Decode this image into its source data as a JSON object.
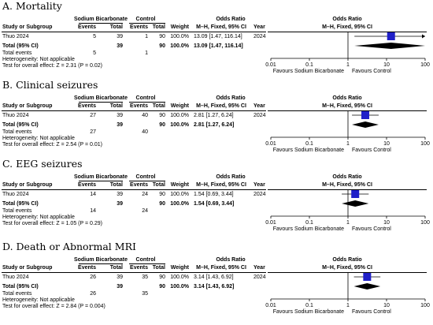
{
  "chart_data": [
    {
      "type": "forest",
      "title": "A. Mortality",
      "columns": {
        "study": "Study or Subgroup",
        "group1": "Sodium Bicarbonate",
        "group2": "Control",
        "events": "Events",
        "total": "Total",
        "weight": "Weight",
        "or_header": "Odds Ratio",
        "or_sub": "M–H, Fixed, 95% CI",
        "year": "Year"
      },
      "studies": [
        {
          "name": "Thuo 2024",
          "events1": "5",
          "total1": "39",
          "events2": "1",
          "total2": "90",
          "weight": "100.0%",
          "ci_text": "13.09 [1.47, 116.14]",
          "year": "2024",
          "or": 13.09,
          "lo": 1.47,
          "hi": 116.14,
          "arrow_right": true
        }
      ],
      "total": {
        "label": "Total (95% CI)",
        "total1": "39",
        "total2": "90",
        "weight": "100.0%",
        "ci_text": "13.09 [1.47, 116.14]",
        "or": 13.09,
        "lo": 1.47,
        "hi": 116.14
      },
      "total_events": {
        "label": "Total events",
        "events1": "5",
        "events2": "1"
      },
      "heterogeneity": "Heterogeneity: Not applicable",
      "overall_effect": "Test for overall effect: Z = 2.31 (P = 0.02)",
      "axis": {
        "scale": "log",
        "min": 0.01,
        "max": 100,
        "ticks": [
          "0.01",
          "0.1",
          "1",
          "10",
          "100"
        ],
        "left_label": "Favours Sodium Bicarbonate",
        "right_label": "Favours Control"
      }
    },
    {
      "type": "forest",
      "title": "B. Clinical seizures",
      "columns": {
        "study": "Study or Subgroup",
        "group1": "Sodium Bicarbonate",
        "group2": "Control",
        "events": "Events",
        "total": "Total",
        "weight": "Weight",
        "or_header": "Odds Ratio",
        "or_sub": "M–H, Fixed, 95% CI",
        "year": "Year"
      },
      "studies": [
        {
          "name": "Thuo 2024",
          "events1": "27",
          "total1": "39",
          "events2": "40",
          "total2": "90",
          "weight": "100.0%",
          "ci_text": "2.81 [1.27, 6.24]",
          "year": "2024",
          "or": 2.81,
          "lo": 1.27,
          "hi": 6.24,
          "arrow_right": false
        }
      ],
      "total": {
        "label": "Total (95% CI)",
        "total1": "39",
        "total2": "90",
        "weight": "100.0%",
        "ci_text": "2.81 [1.27, 6.24]",
        "or": 2.81,
        "lo": 1.27,
        "hi": 6.24
      },
      "total_events": {
        "label": "Total events",
        "events1": "27",
        "events2": "40"
      },
      "heterogeneity": "Heterogeneity: Not applicable",
      "overall_effect": "Test for overall effect: Z = 2.54 (P = 0.01)",
      "axis": {
        "scale": "log",
        "min": 0.01,
        "max": 100,
        "ticks": [
          "0.01",
          "0.1",
          "1",
          "10",
          "100"
        ],
        "left_label": "Favours Sodium Bicarbonate",
        "right_label": "Favours Control"
      }
    },
    {
      "type": "forest",
      "title": "C. EEG seizures",
      "columns": {
        "study": "Study or Subgroup",
        "group1": "Sodium Bicarbonate",
        "group2": "Control",
        "events": "Events",
        "total": "Total",
        "weight": "Weight",
        "or_header": "Odds Ratio",
        "or_sub": "M–H, Fixed, 95% CI",
        "year": "Year"
      },
      "studies": [
        {
          "name": "Thuo 2024",
          "events1": "14",
          "total1": "39",
          "events2": "24",
          "total2": "90",
          "weight": "100.0%",
          "ci_text": "1.54 [0.69, 3.44]",
          "year": "2024",
          "or": 1.54,
          "lo": 0.69,
          "hi": 3.44,
          "arrow_right": false
        }
      ],
      "total": {
        "label": "Total (95% CI)",
        "total1": "39",
        "total2": "90",
        "weight": "100.0%",
        "ci_text": "1.54 [0.69, 3.44]",
        "or": 1.54,
        "lo": 0.69,
        "hi": 3.44
      },
      "total_events": {
        "label": "Total events",
        "events1": "14",
        "events2": "24"
      },
      "heterogeneity": "Heterogeneity: Not applicable",
      "overall_effect": "Test for overall effect: Z = 1.05 (P = 0.29)",
      "axis": {
        "scale": "log",
        "min": 0.01,
        "max": 100,
        "ticks": [
          "0.01",
          "0.1",
          "1",
          "10",
          "100"
        ],
        "left_label": "Favours Sodium Bicarbonate",
        "right_label": "Favours Control"
      }
    },
    {
      "type": "forest",
      "title": "D. Death or Abnormal MRI",
      "columns": {
        "study": "Study or Subgroup",
        "group1": "Sodium Bicarbonate",
        "group2": "Control",
        "events": "Events",
        "total": "Total",
        "weight": "Weight",
        "or_header": "Odds Ratio",
        "or_sub": "M–H, Fixed, 95% CI",
        "year": "Year"
      },
      "studies": [
        {
          "name": "Thuo 2024",
          "events1": "26",
          "total1": "39",
          "events2": "35",
          "total2": "90",
          "weight": "100.0%",
          "ci_text": "3.14 [1.43, 6.92]",
          "year": "2024",
          "or": 3.14,
          "lo": 1.43,
          "hi": 6.92,
          "arrow_right": false
        }
      ],
      "total": {
        "label": "Total (95% CI)",
        "total1": "39",
        "total2": "90",
        "weight": "100.0%",
        "ci_text": "3.14 [1.43, 6.92]",
        "or": 3.14,
        "lo": 1.43,
        "hi": 6.92
      },
      "total_events": {
        "label": "Total events",
        "events1": "26",
        "events2": "35"
      },
      "heterogeneity": "Heterogeneity: Not applicable",
      "overall_effect": "Test for overall effect: Z = 2.84 (P = 0.004)",
      "axis": {
        "scale": "log",
        "min": 0.01,
        "max": 100,
        "ticks": [
          "0.01",
          "0.1",
          "1",
          "10",
          "100"
        ],
        "left_label": "Favours Sodium Bicarbonate",
        "right_label": "Favours Control"
      }
    }
  ],
  "colors": {
    "study_marker": "#2020c8",
    "text": "#000000",
    "diamond": "#000000"
  }
}
